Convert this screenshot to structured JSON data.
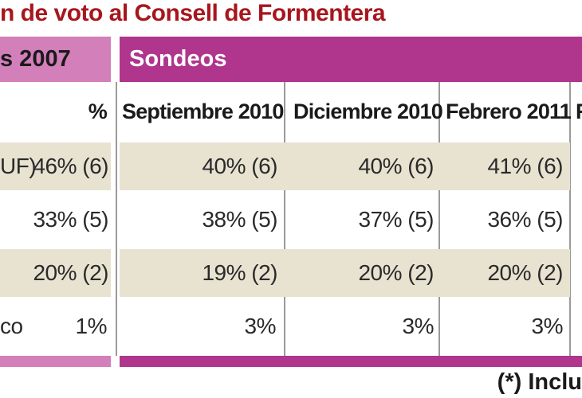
{
  "title": "n de voto al Consell  de Formentera",
  "header": {
    "left": "s 2007",
    "right": "Sondeos"
  },
  "columns": [
    "%",
    "Septiembre 2010",
    "Diciembre 2010",
    "Febrero 2011",
    "F"
  ],
  "rows": [
    {
      "label": "UF)",
      "values": [
        "46% (6)",
        "40% (6)",
        "40% (6)",
        "41% (6)"
      ]
    },
    {
      "label": "",
      "values": [
        "33% (5)",
        "38% (5)",
        "37% (5)",
        "36% (5)"
      ]
    },
    {
      "label": "",
      "values": [
        "20% (2)",
        "19% (2)",
        "20% (2)",
        "20% (2)"
      ]
    },
    {
      "label": "co",
      "values": [
        "1%",
        "3%",
        "3%",
        "3%"
      ]
    }
  ],
  "footnote": "(*) Inclu",
  "colors": {
    "title": "#a8161d",
    "band_left": "#d37fba",
    "band_right": "#b0358d",
    "row_shade": "#e8e2d1"
  }
}
